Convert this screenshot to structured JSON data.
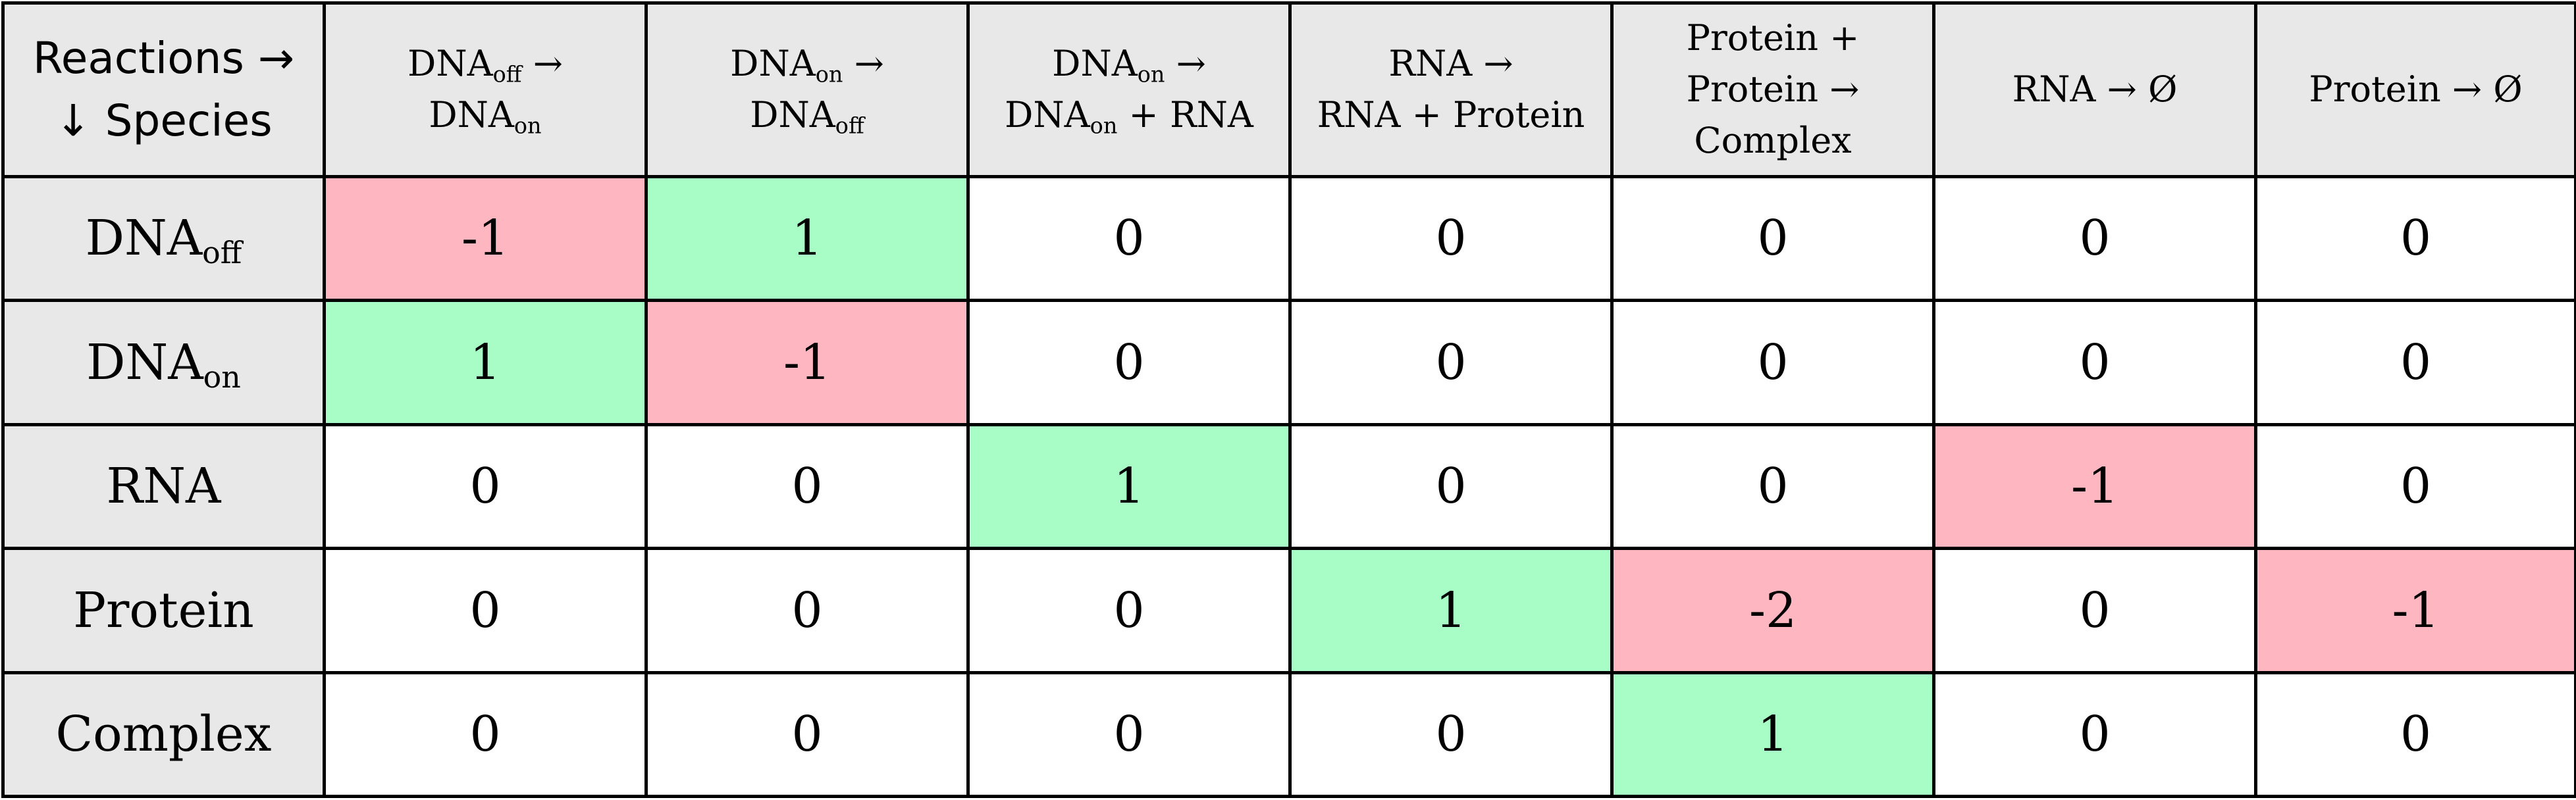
{
  "corner": {
    "line1": "Reactions →",
    "line2": "↓ Species"
  },
  "reactions": [
    {
      "lines": [
        [
          {
            "t": "DNA"
          },
          {
            "s": "off"
          },
          {
            "t": " →"
          }
        ],
        [
          {
            "t": "DNA"
          },
          {
            "s": "on"
          }
        ]
      ]
    },
    {
      "lines": [
        [
          {
            "t": "DNA"
          },
          {
            "s": "on"
          },
          {
            "t": " →"
          }
        ],
        [
          {
            "t": "DNA"
          },
          {
            "s": "off"
          }
        ]
      ]
    },
    {
      "lines": [
        [
          {
            "t": "DNA"
          },
          {
            "s": "on"
          },
          {
            "t": " →"
          }
        ],
        [
          {
            "t": "DNA"
          },
          {
            "s": "on"
          },
          {
            "t": " + RNA"
          }
        ]
      ]
    },
    {
      "lines": [
        [
          {
            "t": "RNA →"
          }
        ],
        [
          {
            "t": "RNA + Protein"
          }
        ]
      ]
    },
    {
      "lines": [
        [
          {
            "t": "Protein +"
          }
        ],
        [
          {
            "t": "Protein →"
          }
        ],
        [
          {
            "t": "Complex"
          }
        ]
      ]
    },
    {
      "lines": [
        [
          {
            "t": "RNA → Ø"
          }
        ]
      ]
    },
    {
      "lines": [
        [
          {
            "t": "Protein → Ø"
          }
        ]
      ]
    }
  ],
  "species": [
    {
      "parts": [
        {
          "t": "DNA"
        },
        {
          "s": "off"
        }
      ],
      "values": [
        "-1",
        "1",
        "0",
        "0",
        "0",
        "0",
        "0"
      ]
    },
    {
      "parts": [
        {
          "t": "DNA"
        },
        {
          "s": "on"
        }
      ],
      "values": [
        "1",
        "-1",
        "0",
        "0",
        "0",
        "0",
        "0"
      ]
    },
    {
      "parts": [
        {
          "t": "RNA"
        }
      ],
      "values": [
        "0",
        "0",
        "1",
        "0",
        "0",
        "-1",
        "0"
      ]
    },
    {
      "parts": [
        {
          "t": "Protein"
        }
      ],
      "values": [
        "0",
        "0",
        "0",
        "1",
        "-2",
        "0",
        "-1"
      ]
    },
    {
      "parts": [
        {
          "t": "Complex"
        }
      ],
      "values": [
        "0",
        "0",
        "0",
        "0",
        "1",
        "0",
        "0"
      ]
    }
  ],
  "colors": {
    "header_bg": "#e8e8e8",
    "positive_bg": "#a7fdc5",
    "negative_bg": "#feb6c1",
    "zero_bg": "#ffffff",
    "border": "#000000"
  }
}
